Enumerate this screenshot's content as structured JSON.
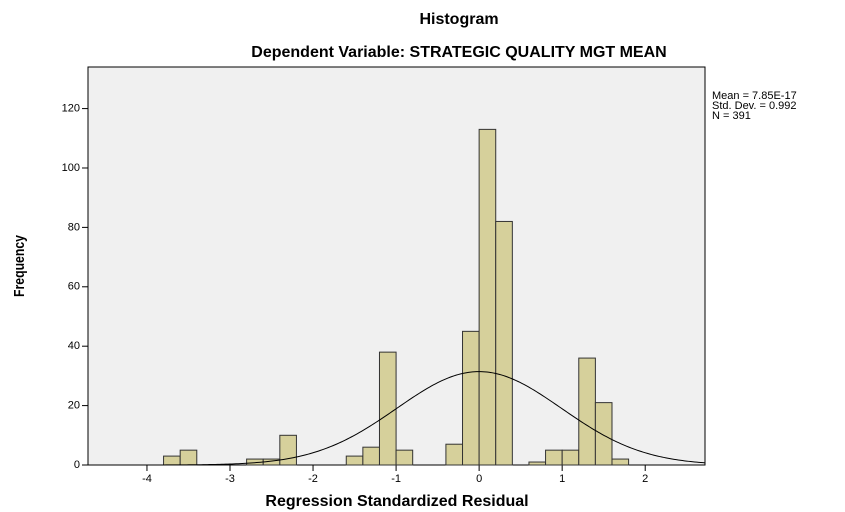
{
  "chart_data": {
    "type": "histogram",
    "title": "Histogram",
    "subtitle": "Dependent Variable: STRATEGIC QUALITY MGT MEAN",
    "x_label": "Regression Standardized Residual",
    "y_label": "Frequency",
    "bins": [
      -3.8,
      -3.6,
      -3.4,
      -3.2,
      -3.0,
      -2.8,
      -2.6,
      -2.4,
      -2.2,
      -2.0,
      -1.8,
      -1.6,
      -1.4,
      -1.2,
      -1.0,
      -0.8,
      -0.6,
      -0.4,
      -0.2,
      0,
      0.2,
      0.4,
      0.6,
      0.8,
      1.0,
      1.2,
      1.4,
      1.6,
      1.8
    ],
    "values": [
      3,
      5,
      0,
      0,
      0,
      2,
      2,
      10,
      0,
      0,
      0,
      3,
      6,
      38,
      5,
      0,
      0,
      7,
      45,
      113,
      82,
      0,
      1,
      5,
      5,
      36,
      21,
      2
    ],
    "color": "#d6d09b",
    "xlim": [
      -4.71,
      2.72
    ],
    "xticks": [
      -4,
      -3,
      -2,
      -1,
      0,
      1,
      2
    ],
    "ylim": [
      0,
      134
    ],
    "yticks": [
      0,
      20,
      40,
      60,
      80,
      100,
      120
    ],
    "stats": [
      {
        "value": 7.85e-17,
        "label": "Mean = 7.85E-17"
      },
      {
        "value": 0.992,
        "label": "Std. Dev. = 0.992"
      },
      {
        "value": 391,
        "label": "N = 391"
      }
    ]
  }
}
